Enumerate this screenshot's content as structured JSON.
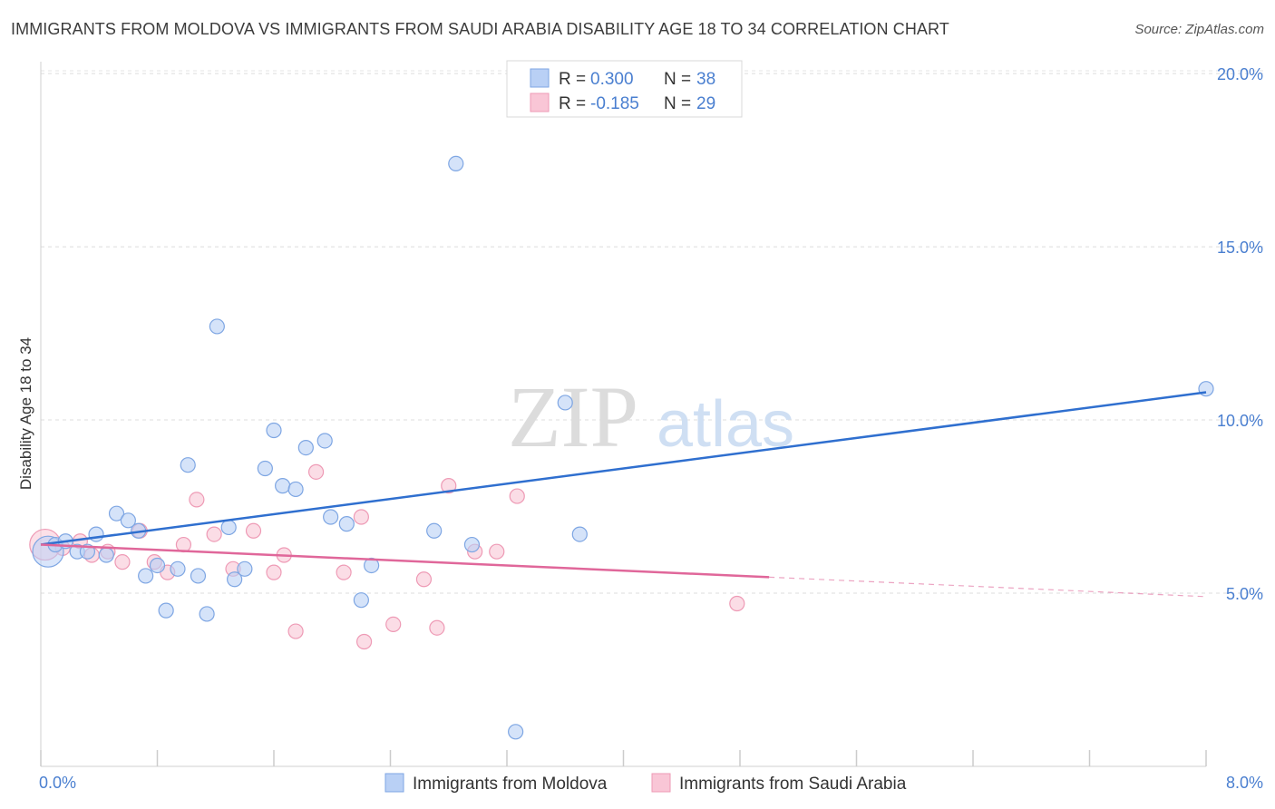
{
  "title": "IMMIGRANTS FROM MOLDOVA VS IMMIGRANTS FROM SAUDI ARABIA DISABILITY AGE 18 TO 34 CORRELATION CHART",
  "source": "Source: ZipAtlas.com",
  "watermark": {
    "zip": "ZIP",
    "atlas": "atlas"
  },
  "colors": {
    "moldova_fill": "#b9d0f5",
    "moldova_stroke": "#7ea6e3",
    "moldova_line": "#2f6fcf",
    "saudi_fill": "#f9c6d6",
    "saudi_stroke": "#ee9ab5",
    "saudi_line": "#e0679a",
    "accent_text": "#4a7fd0"
  },
  "legend_box": [
    {
      "r_label": "R = ",
      "r_value": "0.300",
      "n_label": "N = ",
      "n_value": "38"
    },
    {
      "r_label": "R = ",
      "r_value": "-0.185",
      "n_label": "N = ",
      "n_value": "29"
    }
  ],
  "chart_data": {
    "type": "scatter",
    "title": "IMMIGRANTS FROM MOLDOVA VS IMMIGRANTS FROM SAUDI ARABIA DISABILITY AGE 18 TO 34 CORRELATION CHART",
    "xlabel": "",
    "ylabel": "Disability Age 18 to 34",
    "xlim": [
      0,
      8
    ],
    "ylim": [
      0,
      20.5
    ],
    "x_tick_labels": [
      "0.0%",
      "8.0%"
    ],
    "y_ticks": [
      5,
      10,
      15,
      20
    ],
    "y_tick_labels": [
      "5.0%",
      "10.0%",
      "15.0%",
      "20.0%"
    ],
    "grid": "horizontal dashed",
    "legend": "bottom-center",
    "series": [
      {
        "name": "Immigrants from Moldova",
        "R": 0.3,
        "N": 38,
        "trend": {
          "x": [
            0,
            8
          ],
          "y": [
            6.4,
            10.8
          ],
          "dashed_from": null
        },
        "points": [
          {
            "x": 0.05,
            "y": 6.2,
            "big": true
          },
          {
            "x": 0.1,
            "y": 6.4
          },
          {
            "x": 0.17,
            "y": 6.5
          },
          {
            "x": 0.25,
            "y": 6.2
          },
          {
            "x": 0.32,
            "y": 6.2
          },
          {
            "x": 0.38,
            "y": 6.7
          },
          {
            "x": 0.45,
            "y": 6.1
          },
          {
            "x": 0.52,
            "y": 7.3
          },
          {
            "x": 0.6,
            "y": 7.1
          },
          {
            "x": 0.67,
            "y": 6.8
          },
          {
            "x": 0.72,
            "y": 5.5
          },
          {
            "x": 0.8,
            "y": 5.8
          },
          {
            "x": 0.86,
            "y": 4.5
          },
          {
            "x": 0.94,
            "y": 5.7
          },
          {
            "x": 1.01,
            "y": 8.7
          },
          {
            "x": 1.08,
            "y": 5.5
          },
          {
            "x": 1.14,
            "y": 4.4
          },
          {
            "x": 1.21,
            "y": 12.7
          },
          {
            "x": 1.29,
            "y": 6.9
          },
          {
            "x": 1.33,
            "y": 5.4
          },
          {
            "x": 1.4,
            "y": 5.7
          },
          {
            "x": 1.54,
            "y": 8.6
          },
          {
            "x": 1.6,
            "y": 9.7
          },
          {
            "x": 1.66,
            "y": 8.1
          },
          {
            "x": 1.75,
            "y": 8.0
          },
          {
            "x": 1.82,
            "y": 9.2
          },
          {
            "x": 1.95,
            "y": 9.4
          },
          {
            "x": 1.99,
            "y": 7.2
          },
          {
            "x": 2.1,
            "y": 7.0
          },
          {
            "x": 2.2,
            "y": 4.8
          },
          {
            "x": 2.27,
            "y": 5.8
          },
          {
            "x": 2.7,
            "y": 6.8
          },
          {
            "x": 2.85,
            "y": 17.4
          },
          {
            "x": 2.96,
            "y": 6.4
          },
          {
            "x": 3.26,
            "y": 1.0
          },
          {
            "x": 3.6,
            "y": 10.5
          },
          {
            "x": 3.7,
            "y": 6.7
          },
          {
            "x": 8.0,
            "y": 10.9
          }
        ]
      },
      {
        "name": "Immigrants from Saudi Arabia",
        "R": -0.185,
        "N": 29,
        "trend": {
          "x": [
            0,
            8
          ],
          "y": [
            6.4,
            4.9
          ],
          "dashed_from": 5.0
        },
        "points": [
          {
            "x": 0.03,
            "y": 6.4,
            "big": true
          },
          {
            "x": 0.15,
            "y": 6.3
          },
          {
            "x": 0.27,
            "y": 6.5
          },
          {
            "x": 0.35,
            "y": 6.1
          },
          {
            "x": 0.46,
            "y": 6.2
          },
          {
            "x": 0.56,
            "y": 5.9
          },
          {
            "x": 0.68,
            "y": 6.8
          },
          {
            "x": 0.78,
            "y": 5.9
          },
          {
            "x": 0.87,
            "y": 5.6
          },
          {
            "x": 0.98,
            "y": 6.4
          },
          {
            "x": 1.07,
            "y": 7.7
          },
          {
            "x": 1.19,
            "y": 6.7
          },
          {
            "x": 1.32,
            "y": 5.7
          },
          {
            "x": 1.46,
            "y": 6.8
          },
          {
            "x": 1.6,
            "y": 5.6
          },
          {
            "x": 1.67,
            "y": 6.1
          },
          {
            "x": 1.75,
            "y": 3.9
          },
          {
            "x": 1.89,
            "y": 8.5
          },
          {
            "x": 2.08,
            "y": 5.6
          },
          {
            "x": 2.2,
            "y": 7.2
          },
          {
            "x": 2.22,
            "y": 3.6
          },
          {
            "x": 2.42,
            "y": 4.1
          },
          {
            "x": 2.63,
            "y": 5.4
          },
          {
            "x": 2.72,
            "y": 4.0
          },
          {
            "x": 2.8,
            "y": 8.1
          },
          {
            "x": 2.98,
            "y": 6.2
          },
          {
            "x": 3.13,
            "y": 6.2
          },
          {
            "x": 3.27,
            "y": 7.8
          },
          {
            "x": 4.78,
            "y": 4.7
          }
        ]
      }
    ]
  }
}
